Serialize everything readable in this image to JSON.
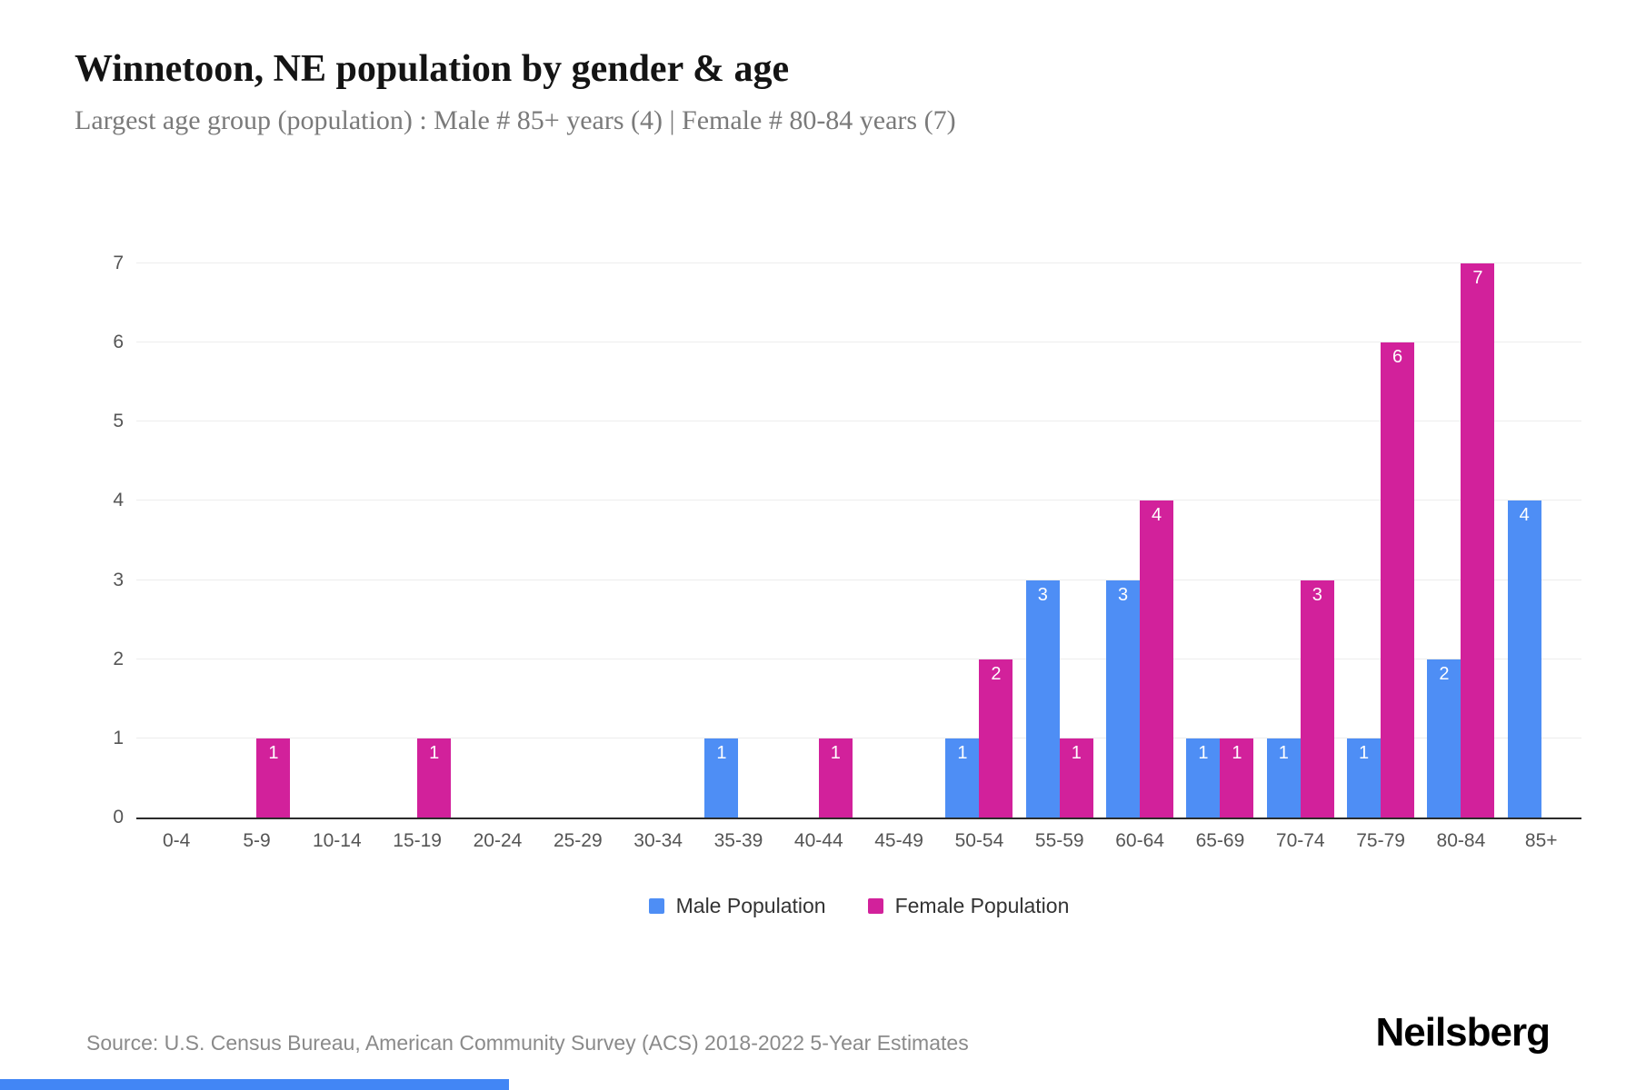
{
  "header": {
    "title": "Winnetoon, NE population by gender & age",
    "subtitle": "Largest age group (population) : Male # 85+ years (4) | Female # 80-84 years (7)"
  },
  "chart_data": {
    "type": "bar",
    "title": "Winnetoon, NE population by gender & age",
    "categories": [
      "0-4",
      "5-9",
      "10-14",
      "15-19",
      "20-24",
      "25-29",
      "30-34",
      "35-39",
      "40-44",
      "45-49",
      "50-54",
      "55-59",
      "60-64",
      "65-69",
      "70-74",
      "75-79",
      "80-84",
      "85+"
    ],
    "series": [
      {
        "name": "Male Population",
        "color": "#4e8ef5",
        "values": [
          0,
          0,
          0,
          0,
          0,
          0,
          0,
          1,
          0,
          0,
          1,
          3,
          3,
          1,
          1,
          1,
          2,
          4
        ]
      },
      {
        "name": "Female Population",
        "color": "#d2219b",
        "values": [
          0,
          1,
          0,
          1,
          0,
          0,
          0,
          0,
          1,
          0,
          2,
          1,
          4,
          1,
          3,
          6,
          7,
          0
        ]
      }
    ],
    "xlabel": "",
    "ylabel": "",
    "ylim": [
      0,
      7
    ],
    "yticks": [
      0,
      1,
      2,
      3,
      4,
      5,
      6,
      7
    ],
    "grid": true,
    "legend_position": "bottom",
    "show_bar_labels": true
  },
  "footer": {
    "source": "Source: U.S. Census Bureau, American Community Survey (ACS) 2018-2022 5-Year Estimates",
    "brand": "Neilsberg"
  },
  "page": {
    "background": "#ffffff",
    "accent_color": "#4286f5"
  }
}
